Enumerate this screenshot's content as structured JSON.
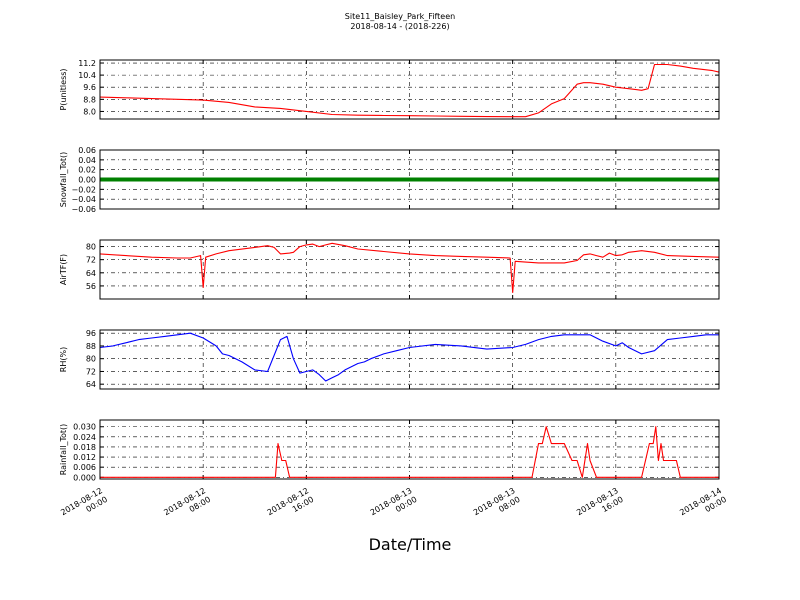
{
  "title": "Site11_Baisley_Park_Fifteen",
  "subtitle": "2018-08-14 - (2018-226)",
  "xlabel": "Date/Time",
  "x_ticks": [
    {
      "line1": "2018-08-12",
      "line2": "00:00",
      "t": 0
    },
    {
      "line1": "2018-08-12",
      "line2": "08:00",
      "t": 8
    },
    {
      "line1": "2018-08-12",
      "line2": "16:00",
      "t": 16
    },
    {
      "line1": "2018-08-13",
      "line2": "00:00",
      "t": 24
    },
    {
      "line1": "2018-08-13",
      "line2": "08:00",
      "t": 32
    },
    {
      "line1": "2018-08-13",
      "line2": "16:00",
      "t": 40
    },
    {
      "line1": "2018-08-14",
      "line2": "00:00",
      "t": 48
    }
  ],
  "chart_data": [
    {
      "type": "line",
      "ylabel": "P(unitless)",
      "color": "#ff0000",
      "ylim": [
        7.5,
        11.4
      ],
      "yticks": [
        8.0,
        8.8,
        9.6,
        10.4,
        11.2
      ],
      "ytick_labels": [
        "8.0",
        "8.8",
        "9.6",
        "10.4",
        "11.2"
      ],
      "x": [
        0,
        2,
        4,
        6,
        8,
        10,
        12,
        14,
        16,
        18,
        20,
        22,
        24,
        26,
        28,
        30,
        32,
        33,
        34,
        35,
        36,
        37,
        37.5,
        38,
        39,
        40,
        41,
        42,
        42.5,
        43,
        44,
        45,
        46,
        46.5,
        47,
        47.5,
        48
      ],
      "y": [
        8.95,
        8.9,
        8.85,
        8.8,
        8.75,
        8.6,
        8.3,
        8.2,
        8.0,
        7.8,
        7.75,
        7.73,
        7.72,
        7.7,
        7.68,
        7.66,
        7.65,
        7.65,
        7.9,
        8.5,
        8.85,
        9.8,
        9.9,
        9.9,
        9.8,
        9.6,
        9.5,
        9.4,
        9.5,
        11.1,
        11.1,
        11.0,
        10.85,
        10.8,
        10.75,
        10.7,
        10.6
      ]
    },
    {
      "type": "line",
      "ylabel": "Snowfall_Tot()",
      "color": "#008000",
      "ylim": [
        -0.06,
        0.06
      ],
      "yticks": [
        -0.06,
        -0.04,
        -0.02,
        0.0,
        0.02,
        0.04,
        0.06
      ],
      "ytick_labels": [
        "−0.06",
        "−0.04",
        "−0.02",
        "0.00",
        "0.02",
        "0.04",
        "0.06"
      ],
      "x": [
        0,
        48
      ],
      "y": [
        0.0,
        0.0
      ]
    },
    {
      "type": "line",
      "ylabel": "AirTF(F)",
      "color": "#ff0000",
      "ylim": [
        48,
        84
      ],
      "yticks": [
        56,
        64,
        72,
        80
      ],
      "ytick_labels": [
        "56",
        "64",
        "72",
        "80"
      ],
      "x": [
        0,
        2,
        4,
        6,
        7,
        7.8,
        8.0,
        8.2,
        9,
        10,
        12,
        13,
        13.5,
        14,
        14.7,
        15,
        15.5,
        16,
        16.5,
        17,
        17.5,
        18,
        19,
        20,
        22,
        24,
        26,
        28,
        30,
        31.8,
        32.0,
        32.2,
        33,
        34,
        35,
        36,
        37,
        37.5,
        38,
        38.5,
        39,
        39.5,
        40,
        40.5,
        41,
        42,
        43,
        44,
        46,
        48
      ],
      "y": [
        75.5,
        74.5,
        73.5,
        73,
        73,
        74.5,
        55,
        73.5,
        75.5,
        77.5,
        79.5,
        80.5,
        79.5,
        75.5,
        76,
        76.5,
        80,
        81,
        81.5,
        80,
        81,
        82,
        80.5,
        78.5,
        77,
        75.5,
        74.5,
        74,
        73.5,
        73,
        52,
        71,
        70.5,
        70,
        70,
        70,
        71.5,
        75,
        75.5,
        74.5,
        73.5,
        76,
        74.5,
        75,
        76.5,
        77.5,
        76.5,
        74.5,
        74,
        73.5
      ]
    },
    {
      "type": "line",
      "ylabel": "RH(%)",
      "color": "#0000ff",
      "ylim": [
        61,
        98
      ],
      "yticks": [
        64,
        72,
        80,
        88,
        96
      ],
      "ytick_labels": [
        "64",
        "72",
        "80",
        "88",
        "96"
      ],
      "x": [
        0,
        1,
        2,
        3,
        4,
        5,
        6,
        7,
        8,
        9,
        9.5,
        10,
        11,
        12,
        13,
        14,
        14.5,
        15,
        15.5,
        16,
        16.5,
        17,
        17.5,
        18,
        18.5,
        19,
        20,
        20.5,
        21,
        22,
        23,
        24,
        26,
        28,
        30,
        32,
        33,
        34,
        35,
        36,
        37,
        38,
        39,
        40,
        40.5,
        41,
        42,
        43,
        44,
        45,
        46,
        47,
        48
      ],
      "y": [
        87,
        88,
        90,
        92,
        93,
        94,
        95,
        96,
        93,
        88,
        83,
        82,
        78,
        73,
        72,
        92,
        94,
        80,
        71,
        72,
        73,
        70,
        66,
        68,
        70,
        73,
        77,
        78,
        80,
        83,
        85,
        87,
        89,
        88,
        86,
        87,
        89,
        92,
        94,
        95,
        95,
        95,
        91,
        88,
        90,
        87,
        83,
        85,
        92,
        93,
        94,
        95,
        95
      ]
    },
    {
      "type": "line",
      "ylabel": "Rainfall_Tot()",
      "color": "#ff0000",
      "ylim": [
        -0.001,
        0.034
      ],
      "yticks": [
        0.0,
        0.006,
        0.012,
        0.018,
        0.024,
        0.03
      ],
      "ytick_labels": [
        "0.000",
        "0.006",
        "0.012",
        "0.018",
        "0.024",
        "0.030"
      ],
      "x": [
        0,
        13.6,
        13.8,
        14.1,
        14.4,
        14.7,
        15.0,
        33.5,
        34.0,
        34.3,
        34.6,
        35.0,
        35.5,
        36.0,
        36.6,
        37.0,
        37.4,
        37.6,
        37.8,
        38.0,
        38.5,
        42.0,
        42.6,
        42.9,
        43.1,
        43.3,
        43.5,
        43.7,
        43.9,
        44.1,
        44.3,
        44.5,
        44.7,
        45.0,
        45.3,
        48
      ],
      "y": [
        0,
        0,
        0.02,
        0.01,
        0.01,
        0,
        0,
        0,
        0.02,
        0.02,
        0.03,
        0.02,
        0.02,
        0.02,
        0.01,
        0.01,
        0,
        0.01,
        0.02,
        0.01,
        0,
        0,
        0.02,
        0.02,
        0.03,
        0.01,
        0.02,
        0.01,
        0.01,
        0.01,
        0.01,
        0.01,
        0.01,
        0,
        0,
        0
      ]
    }
  ]
}
